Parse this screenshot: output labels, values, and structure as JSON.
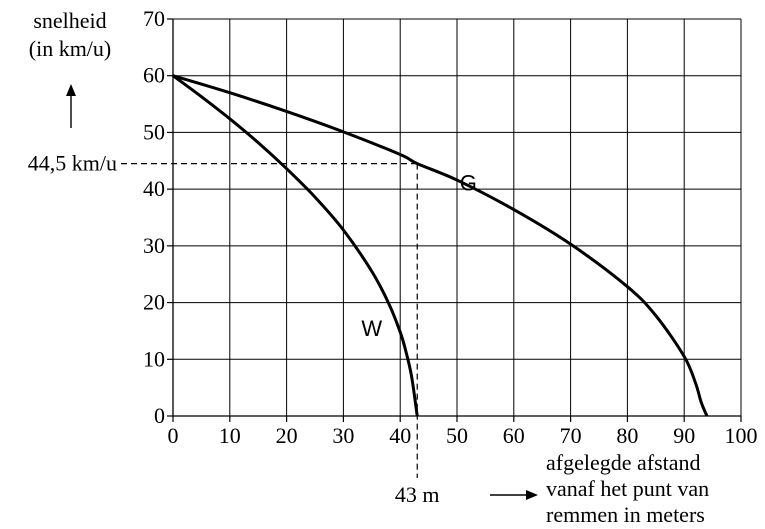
{
  "chart_data": {
    "type": "line",
    "ylabel_lines": [
      "snelheid",
      "(in km/u)"
    ],
    "xlabel_lines": [
      "afgelegde afstand",
      "vanaf het punt van",
      "remmen in meters"
    ],
    "xlim": [
      0,
      100
    ],
    "ylim": [
      0,
      70
    ],
    "x_ticks": [
      0,
      10,
      20,
      30,
      40,
      50,
      60,
      70,
      80,
      90,
      100
    ],
    "y_ticks": [
      0,
      10,
      20,
      30,
      40,
      50,
      60,
      70
    ],
    "grid": true,
    "series": [
      {
        "name": "G",
        "x": [
          0,
          10,
          20,
          30,
          40,
          43,
          50,
          60,
          70,
          80,
          85,
          90,
          92,
          93,
          94
        ],
        "y": [
          60,
          57.0,
          53.7,
          50.1,
          46.1,
          44.5,
          41.6,
          36.4,
          30.3,
          22.8,
          17.7,
          10.5,
          5.8,
          2.4,
          0
        ]
      },
      {
        "name": "W",
        "x": [
          0,
          5,
          10,
          15,
          20,
          25,
          30,
          35,
          38,
          40,
          41,
          42,
          43
        ],
        "y": [
          60,
          56.3,
          52.4,
          48.2,
          43.6,
          38.6,
          32.8,
          25.5,
          19.8,
          14.8,
          11.4,
          7.0,
          0
        ]
      }
    ],
    "reference": {
      "x": 43,
      "y": 44.5,
      "x_label": "43 m",
      "y_label": "44,5 km/u"
    }
  }
}
